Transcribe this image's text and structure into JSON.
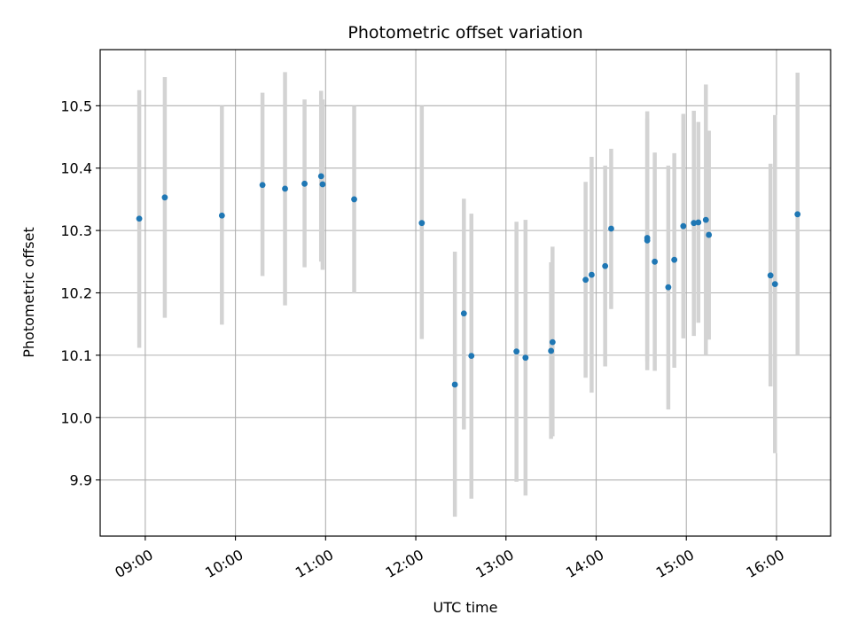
{
  "chart_data": {
    "type": "scatter",
    "title": "Photometric offset variation",
    "xlabel": "UTC time",
    "ylabel": "Photometric offset",
    "x_tick_labels": [
      "09:00",
      "10:00",
      "11:00",
      "12:00",
      "13:00",
      "14:00",
      "15:00",
      "16:00"
    ],
    "x_tick_times": [
      "09:00",
      "10:00",
      "11:00",
      "12:00",
      "13:00",
      "14:00",
      "15:00",
      "16:00"
    ],
    "xlim": [
      "08:30",
      "16:36"
    ],
    "y_tick_labels": [
      "9.9",
      "10.0",
      "10.1",
      "10.2",
      "10.3",
      "10.4",
      "10.5"
    ],
    "y_ticks": [
      9.9,
      10.0,
      10.1,
      10.2,
      10.3,
      10.4,
      10.5
    ],
    "ylim": [
      9.81,
      10.59
    ],
    "grid": true,
    "point_color": "#1f77b4",
    "errorbar_color": "#d3d3d3",
    "points": [
      {
        "t": "08:56",
        "y": 10.319,
        "lo": 10.112,
        "hi": 10.525
      },
      {
        "t": "09:13",
        "y": 10.353,
        "lo": 10.16,
        "hi": 10.546
      },
      {
        "t": "09:51",
        "y": 10.324,
        "lo": 10.149,
        "hi": 10.5
      },
      {
        "t": "10:18",
        "y": 10.373,
        "lo": 10.227,
        "hi": 10.521
      },
      {
        "t": "10:33",
        "y": 10.367,
        "lo": 10.18,
        "hi": 10.554
      },
      {
        "t": "10:46",
        "y": 10.375,
        "lo": 10.241,
        "hi": 10.51
      },
      {
        "t": "10:57",
        "y": 10.387,
        "lo": 10.25,
        "hi": 10.524
      },
      {
        "t": "10:58",
        "y": 10.374,
        "lo": 10.237,
        "hi": 10.51
      },
      {
        "t": "11:19",
        "y": 10.35,
        "lo": 10.199,
        "hi": 10.5
      },
      {
        "t": "12:04",
        "y": 10.312,
        "lo": 10.126,
        "hi": 10.5
      },
      {
        "t": "12:26",
        "y": 10.053,
        "lo": 9.841,
        "hi": 10.266
      },
      {
        "t": "12:32",
        "y": 10.167,
        "lo": 9.981,
        "hi": 10.351
      },
      {
        "t": "12:37",
        "y": 10.099,
        "lo": 9.87,
        "hi": 10.327
      },
      {
        "t": "13:07",
        "y": 10.106,
        "lo": 9.897,
        "hi": 10.314
      },
      {
        "t": "13:13",
        "y": 10.096,
        "lo": 9.875,
        "hi": 10.317
      },
      {
        "t": "13:30",
        "y": 10.107,
        "lo": 9.966,
        "hi": 10.249
      },
      {
        "t": "13:31",
        "y": 10.121,
        "lo": 9.97,
        "hi": 10.274
      },
      {
        "t": "13:53",
        "y": 10.221,
        "lo": 10.064,
        "hi": 10.378
      },
      {
        "t": "13:57",
        "y": 10.229,
        "lo": 10.04,
        "hi": 10.418
      },
      {
        "t": "14:06",
        "y": 10.243,
        "lo": 10.082,
        "hi": 10.404
      },
      {
        "t": "14:10",
        "y": 10.303,
        "lo": 10.174,
        "hi": 10.431
      },
      {
        "t": "14:34",
        "y": 10.284,
        "lo": 10.076,
        "hi": 10.491
      },
      {
        "t": "14:34",
        "y": 10.288,
        "lo": 10.09,
        "hi": 10.48
      },
      {
        "t": "14:39",
        "y": 10.25,
        "lo": 10.075,
        "hi": 10.425
      },
      {
        "t": "14:48",
        "y": 10.209,
        "lo": 10.013,
        "hi": 10.404
      },
      {
        "t": "14:52",
        "y": 10.253,
        "lo": 10.08,
        "hi": 10.424
      },
      {
        "t": "14:58",
        "y": 10.307,
        "lo": 10.127,
        "hi": 10.487
      },
      {
        "t": "15:05",
        "y": 10.312,
        "lo": 10.131,
        "hi": 10.492
      },
      {
        "t": "15:08",
        "y": 10.313,
        "lo": 10.152,
        "hi": 10.474
      },
      {
        "t": "15:13",
        "y": 10.317,
        "lo": 10.1,
        "hi": 10.534
      },
      {
        "t": "15:15",
        "y": 10.293,
        "lo": 10.125,
        "hi": 10.46
      },
      {
        "t": "15:56",
        "y": 10.228,
        "lo": 10.05,
        "hi": 10.407
      },
      {
        "t": "15:59",
        "y": 10.214,
        "lo": 9.943,
        "hi": 10.485
      },
      {
        "t": "16:14",
        "y": 10.326,
        "lo": 10.1,
        "hi": 10.553
      }
    ]
  }
}
